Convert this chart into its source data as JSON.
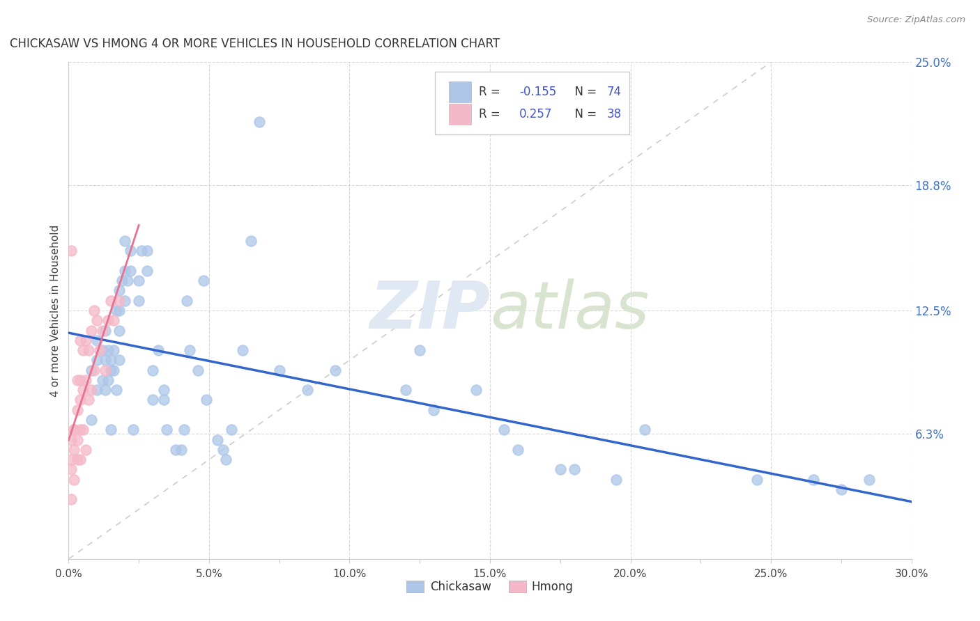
{
  "title": "CHICKASAW VS HMONG 4 OR MORE VEHICLES IN HOUSEHOLD CORRELATION CHART",
  "source": "Source: ZipAtlas.com",
  "ylabel": "4 or more Vehicles in Household",
  "xlim": [
    0.0,
    0.3
  ],
  "ylim": [
    0.0,
    0.25
  ],
  "xtick_labels": [
    "0.0%",
    "",
    "5.0%",
    "",
    "10.0%",
    "",
    "15.0%",
    "",
    "20.0%",
    "",
    "25.0%",
    "",
    "30.0%"
  ],
  "xtick_vals": [
    0.0,
    0.025,
    0.05,
    0.075,
    0.1,
    0.125,
    0.15,
    0.175,
    0.2,
    0.225,
    0.25,
    0.275,
    0.3
  ],
  "ytick_labels_right": [
    "25.0%",
    "18.8%",
    "12.5%",
    "6.3%"
  ],
  "ytick_vals_right": [
    0.25,
    0.188,
    0.125,
    0.063
  ],
  "ytick_gridlines": [
    0.25,
    0.188,
    0.125,
    0.063,
    0.0
  ],
  "xtick_gridlines": [
    0.0,
    0.05,
    0.1,
    0.15,
    0.2,
    0.25,
    0.3
  ],
  "chickasaw_color": "#adc6e8",
  "hmong_color": "#f4b8c8",
  "trendline_chickasaw_color": "#3366cc",
  "trendline_hmong_color": "#e87090",
  "diagonal_color": "#cccccc",
  "R_chickasaw": -0.155,
  "N_chickasaw": 74,
  "R_hmong": 0.257,
  "N_hmong": 38,
  "chickasaw_x": [
    0.008,
    0.008,
    0.01,
    0.01,
    0.01,
    0.012,
    0.012,
    0.013,
    0.013,
    0.013,
    0.014,
    0.014,
    0.015,
    0.015,
    0.015,
    0.016,
    0.016,
    0.017,
    0.017,
    0.018,
    0.018,
    0.018,
    0.018,
    0.019,
    0.02,
    0.02,
    0.02,
    0.021,
    0.022,
    0.022,
    0.023,
    0.025,
    0.025,
    0.026,
    0.028,
    0.028,
    0.03,
    0.03,
    0.032,
    0.034,
    0.034,
    0.035,
    0.038,
    0.04,
    0.041,
    0.042,
    0.043,
    0.046,
    0.048,
    0.049,
    0.053,
    0.055,
    0.056,
    0.058,
    0.062,
    0.065,
    0.068,
    0.075,
    0.085,
    0.095,
    0.12,
    0.125,
    0.13,
    0.145,
    0.155,
    0.16,
    0.175,
    0.18,
    0.195,
    0.205,
    0.245,
    0.265,
    0.275,
    0.285
  ],
  "chickasaw_y": [
    0.07,
    0.095,
    0.1,
    0.085,
    0.11,
    0.105,
    0.09,
    0.115,
    0.085,
    0.1,
    0.09,
    0.105,
    0.095,
    0.1,
    0.065,
    0.095,
    0.105,
    0.085,
    0.125,
    0.135,
    0.1,
    0.115,
    0.125,
    0.14,
    0.13,
    0.145,
    0.16,
    0.14,
    0.145,
    0.155,
    0.065,
    0.14,
    0.13,
    0.155,
    0.155,
    0.145,
    0.08,
    0.095,
    0.105,
    0.085,
    0.08,
    0.065,
    0.055,
    0.055,
    0.065,
    0.13,
    0.105,
    0.095,
    0.14,
    0.08,
    0.06,
    0.055,
    0.05,
    0.065,
    0.105,
    0.16,
    0.22,
    0.095,
    0.085,
    0.095,
    0.085,
    0.105,
    0.075,
    0.085,
    0.065,
    0.055,
    0.045,
    0.045,
    0.04,
    0.065,
    0.04,
    0.04,
    0.035,
    0.04
  ],
  "hmong_x": [
    0.001,
    0.001,
    0.001,
    0.001,
    0.001,
    0.002,
    0.002,
    0.002,
    0.002,
    0.003,
    0.003,
    0.003,
    0.003,
    0.004,
    0.004,
    0.004,
    0.004,
    0.004,
    0.005,
    0.005,
    0.005,
    0.006,
    0.006,
    0.006,
    0.007,
    0.007,
    0.008,
    0.008,
    0.009,
    0.009,
    0.01,
    0.011,
    0.012,
    0.013,
    0.014,
    0.015,
    0.016,
    0.018
  ],
  "hmong_y": [
    0.155,
    0.06,
    0.05,
    0.045,
    0.03,
    0.065,
    0.065,
    0.055,
    0.04,
    0.09,
    0.075,
    0.06,
    0.05,
    0.11,
    0.09,
    0.08,
    0.065,
    0.05,
    0.105,
    0.085,
    0.065,
    0.11,
    0.09,
    0.055,
    0.105,
    0.08,
    0.115,
    0.085,
    0.125,
    0.095,
    0.12,
    0.105,
    0.115,
    0.095,
    0.12,
    0.13,
    0.12,
    0.13
  ],
  "watermark_zip": "ZIP",
  "watermark_atlas": "atlas",
  "background_color": "#ffffff",
  "grid_color": "#d8d8d8",
  "legend_color_R": "#333333",
  "legend_color_val": "#4455cc",
  "legend_border_color": "#cccccc"
}
